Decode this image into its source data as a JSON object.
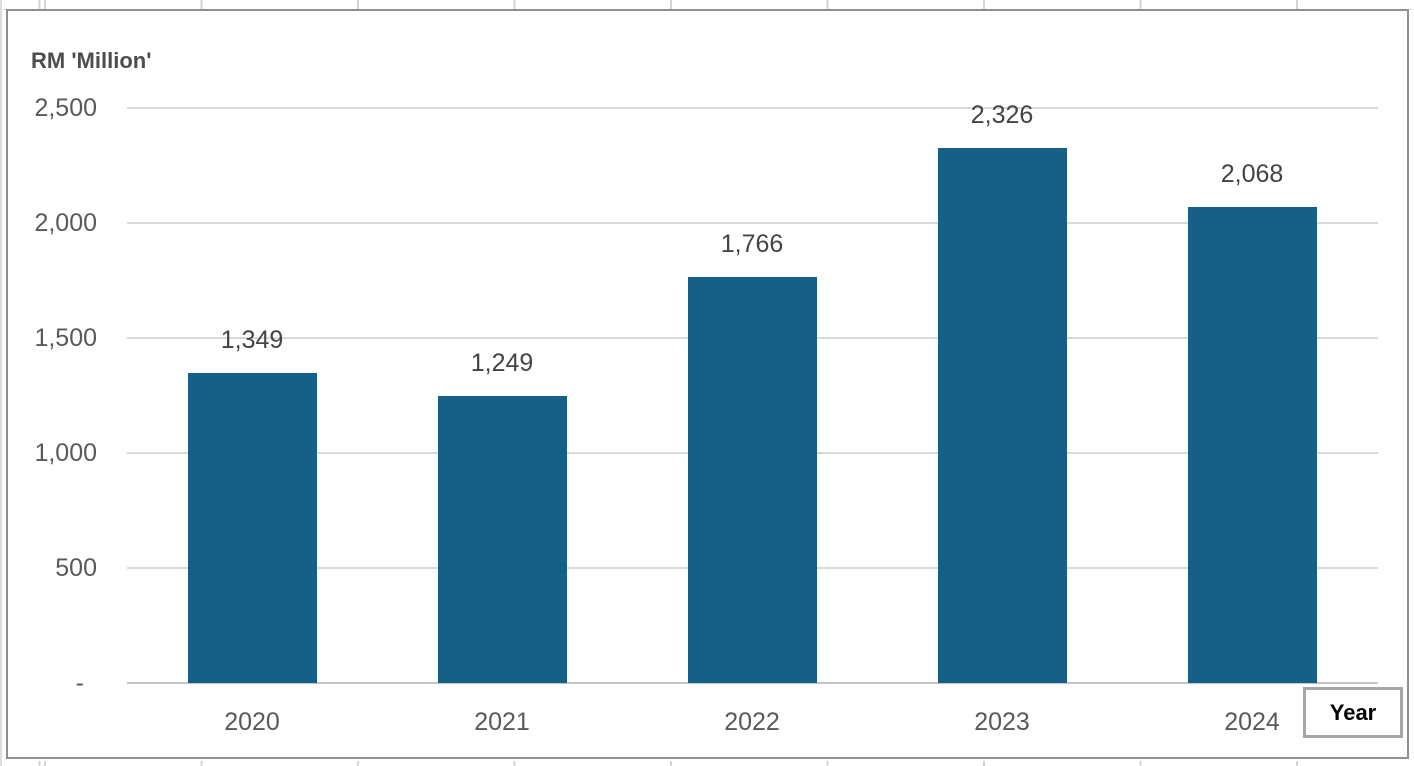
{
  "chart_data": {
    "type": "bar",
    "title": "RM 'Million'",
    "xlabel": "Year",
    "ylabel": "RM 'Million'",
    "categories": [
      "2020",
      "2021",
      "2022",
      "2023",
      "2024"
    ],
    "values": [
      1349,
      1249,
      1766,
      2326,
      2068
    ],
    "value_labels": [
      "1,349",
      "1,249",
      "1,766",
      "2,326",
      "2,068"
    ],
    "y_ticks": [
      {
        "value": 2500,
        "label": "2,500"
      },
      {
        "value": 2000,
        "label": "2,000"
      },
      {
        "value": 1500,
        "label": "1,500"
      },
      {
        "value": 1000,
        "label": "1,000"
      },
      {
        "value": 500,
        "label": "500"
      },
      {
        "value": 0,
        "label": "-"
      }
    ],
    "ylim": [
      0,
      2500
    ],
    "grid": "horizontal",
    "legend": "none",
    "colors": {
      "bar": "#165f87",
      "gridline": "#d9d9d9",
      "axis_line": "#c6c6c6",
      "tick_text": "#595959",
      "value_text": "#444444",
      "frame_border": "#8f8f8f"
    }
  }
}
